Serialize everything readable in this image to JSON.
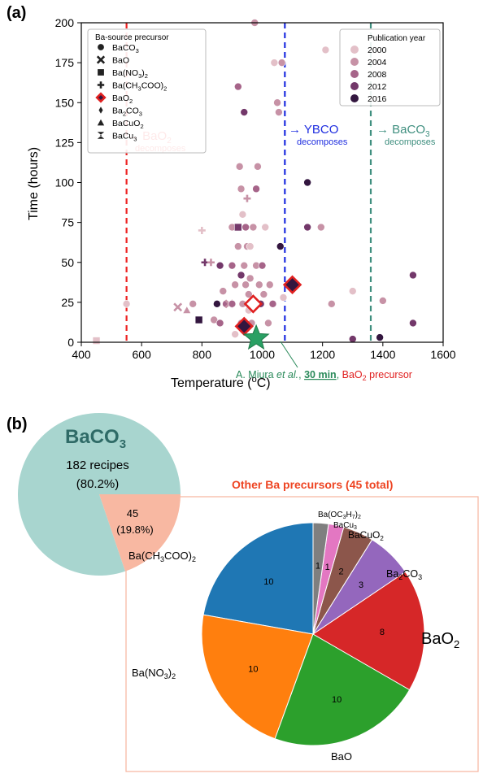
{
  "panel_a": {
    "label": "(a)",
    "xlabel": "Temperature (",
    "xlabel_sup": "o",
    "xlabel_end": "C)",
    "ylabel": "Time (hours)",
    "xlim": [
      400,
      1600
    ],
    "ylim": [
      0,
      200
    ],
    "xticks": [
      "400",
      "600",
      "800",
      "1000",
      "1200",
      "1400",
      "1600"
    ],
    "yticks": [
      "0",
      "25",
      "50",
      "75",
      "100",
      "125",
      "150",
      "175",
      "200"
    ],
    "legend_precursor": {
      "title": "Ba-source precursor",
      "items": [
        {
          "label": "BaCO",
          "sub": "3",
          "marker": "circle"
        },
        {
          "label": "BaO",
          "sub": "",
          "marker": "x"
        },
        {
          "label": "Ba(NO",
          "sub": "3",
          "tail": ")",
          "sub2": "2",
          "marker": "square"
        },
        {
          "label": "Ba(CH",
          "sub": "3",
          "tail": "COO)",
          "sub2": "2",
          "marker": "plus"
        },
        {
          "label": "BaO",
          "sub": "2",
          "marker": "diamond-red"
        },
        {
          "label": "Ba",
          "sub": "2",
          "tail": "CO",
          "sub2": "3",
          "marker": "thin-diamond"
        },
        {
          "label": "BaCuO",
          "sub": "2",
          "marker": "triangle"
        },
        {
          "label": "BaCu",
          "sub": "3",
          "marker": "bowtie"
        }
      ]
    },
    "legend_year": {
      "title": "Publication year",
      "items": [
        {
          "label": "2000",
          "color": "#e3c0c8"
        },
        {
          "label": "2004",
          "color": "#c792a6"
        },
        {
          "label": "2008",
          "color": "#a66489"
        },
        {
          "label": "2012",
          "color": "#73386a"
        },
        {
          "label": "2016",
          "color": "#33163f"
        }
      ]
    },
    "vlines": [
      {
        "x": 550,
        "color": "#ee2222",
        "label": "BaO",
        "label_sub": "2",
        "label2": "decomposes"
      },
      {
        "x": 1075,
        "color": "#1f2ee0",
        "label": "YBCO",
        "label_sub": "",
        "label2": "decomposes"
      },
      {
        "x": 1360,
        "color": "#3f8f7f",
        "label": "BaCO",
        "label_sub": "3",
        "label2": "decomposes"
      }
    ],
    "annotation": {
      "author": "A. Miura ",
      "etal": "et al.",
      "comma": ", ",
      "bold": "30 min",
      "comma2": ", ",
      "precursor": "BaO",
      "precursor_sub": "2",
      "precursor_tail": " precursor",
      "point": [
        980,
        0.5
      ]
    }
  },
  "chart_data": [
    {
      "type": "scatter",
      "xlabel": "Temperature (oC)",
      "ylabel": "Time (hours)",
      "xlim": [
        400,
        1600
      ],
      "ylim": [
        0,
        200
      ],
      "grid": false,
      "points": [
        {
          "x": 450,
          "y": 1,
          "m": "square",
          "c": "#e3c0c8"
        },
        {
          "x": 550,
          "y": 24,
          "m": "circle",
          "c": "#e3c0c8"
        },
        {
          "x": 720,
          "y": 22,
          "m": "x",
          "c": "#c792a6"
        },
        {
          "x": 750,
          "y": 20,
          "m": "triangle",
          "c": "#c792a6"
        },
        {
          "x": 770,
          "y": 24,
          "m": "circle",
          "c": "#c792a6"
        },
        {
          "x": 790,
          "y": 14,
          "m": "square",
          "c": "#33163f"
        },
        {
          "x": 800,
          "y": 70,
          "m": "plus",
          "c": "#e3c0c8"
        },
        {
          "x": 810,
          "y": 50,
          "m": "plus",
          "c": "#73386a"
        },
        {
          "x": 830,
          "y": 50,
          "m": "plus",
          "c": "#c792a6"
        },
        {
          "x": 840,
          "y": 14,
          "m": "circle",
          "c": "#c792a6"
        },
        {
          "x": 850,
          "y": 24,
          "m": "circle",
          "c": "#33163f"
        },
        {
          "x": 860,
          "y": 48,
          "m": "circle",
          "c": "#73386a"
        },
        {
          "x": 860,
          "y": 12,
          "m": "circle",
          "c": "#a66489"
        },
        {
          "x": 870,
          "y": 32,
          "m": "circle",
          "c": "#c792a6"
        },
        {
          "x": 880,
          "y": 24,
          "m": "circle",
          "c": "#a66489"
        },
        {
          "x": 890,
          "y": 24,
          "m": "x",
          "c": "#c792a6"
        },
        {
          "x": 900,
          "y": 24,
          "m": "circle",
          "c": "#a66489"
        },
        {
          "x": 900,
          "y": 48,
          "m": "circle",
          "c": "#a66489"
        },
        {
          "x": 900,
          "y": 72,
          "m": "circle",
          "c": "#c792a6"
        },
        {
          "x": 910,
          "y": 36,
          "m": "circle",
          "c": "#c792a6"
        },
        {
          "x": 910,
          "y": 5,
          "m": "circle",
          "c": "#e3c0c8"
        },
        {
          "x": 920,
          "y": 72,
          "m": "square",
          "c": "#73386a"
        },
        {
          "x": 920,
          "y": 60,
          "m": "circle",
          "c": "#c792a6"
        },
        {
          "x": 920,
          "y": 160,
          "m": "circle",
          "c": "#a66489"
        },
        {
          "x": 925,
          "y": 110,
          "m": "circle",
          "c": "#c792a6"
        },
        {
          "x": 930,
          "y": 12,
          "m": "circle",
          "c": "#c792a6"
        },
        {
          "x": 930,
          "y": 42,
          "m": "circle",
          "c": "#73386a"
        },
        {
          "x": 930,
          "y": 96,
          "m": "circle",
          "c": "#c792a6"
        },
        {
          "x": 935,
          "y": 24,
          "m": "circle",
          "c": "#c792a6"
        },
        {
          "x": 935,
          "y": 80,
          "m": "circle",
          "c": "#e3c0c8"
        },
        {
          "x": 940,
          "y": 48,
          "m": "circle",
          "c": "#c792a6"
        },
        {
          "x": 940,
          "y": 12,
          "m": "circle",
          "c": "#a66489"
        },
        {
          "x": 940,
          "y": 144,
          "m": "circle",
          "c": "#73386a"
        },
        {
          "x": 945,
          "y": 36,
          "m": "circle",
          "c": "#c792a6"
        },
        {
          "x": 945,
          "y": 72,
          "m": "circle",
          "c": "#a66489"
        },
        {
          "x": 950,
          "y": 60,
          "m": "circle",
          "c": "#c792a6"
        },
        {
          "x": 950,
          "y": 90,
          "m": "plus",
          "c": "#c792a6"
        },
        {
          "x": 955,
          "y": 20,
          "m": "circle",
          "c": "#e3c0c8"
        },
        {
          "x": 955,
          "y": 30,
          "m": "circle",
          "c": "#c792a6"
        },
        {
          "x": 960,
          "y": 40,
          "m": "circle",
          "c": "#c792a6"
        },
        {
          "x": 960,
          "y": 60,
          "m": "circle",
          "c": "#e3c0c8"
        },
        {
          "x": 965,
          "y": 12,
          "m": "circle",
          "c": "#c792a6"
        },
        {
          "x": 970,
          "y": 72,
          "m": "circle",
          "c": "#c792a6"
        },
        {
          "x": 975,
          "y": 200,
          "m": "circle",
          "c": "#c792a6"
        },
        {
          "x": 980,
          "y": 96,
          "m": "circle",
          "c": "#a66489"
        },
        {
          "x": 980,
          "y": 48,
          "m": "circle",
          "c": "#c792a6"
        },
        {
          "x": 985,
          "y": 110,
          "m": "circle",
          "c": "#c792a6"
        },
        {
          "x": 990,
          "y": 36,
          "m": "circle",
          "c": "#c792a6"
        },
        {
          "x": 995,
          "y": 24,
          "m": "circle",
          "c": "#73386a"
        },
        {
          "x": 1000,
          "y": 48,
          "m": "circle",
          "c": "#a66489"
        },
        {
          "x": 1005,
          "y": 30,
          "m": "circle",
          "c": "#c792a6"
        },
        {
          "x": 1010,
          "y": 72,
          "m": "circle",
          "c": "#e3c0c8"
        },
        {
          "x": 1020,
          "y": 12,
          "m": "circle",
          "c": "#c792a6"
        },
        {
          "x": 1025,
          "y": 36,
          "m": "circle",
          "c": "#c792a6"
        },
        {
          "x": 1035,
          "y": 24,
          "m": "circle",
          "c": "#a66489"
        },
        {
          "x": 1040,
          "y": 175,
          "m": "circle",
          "c": "#e3c0c8"
        },
        {
          "x": 1050,
          "y": 150,
          "m": "circle",
          "c": "#c792a6"
        },
        {
          "x": 1055,
          "y": 144,
          "m": "circle",
          "c": "#c792a6"
        },
        {
          "x": 1060,
          "y": 60,
          "m": "circle",
          "c": "#33163f"
        },
        {
          "x": 1065,
          "y": 175,
          "m": "circle",
          "c": "#c792a6"
        },
        {
          "x": 1070,
          "y": 28,
          "m": "circle",
          "c": "#e3c0c8"
        },
        {
          "x": 1150,
          "y": 100,
          "m": "circle",
          "c": "#33163f"
        },
        {
          "x": 1150,
          "y": 72,
          "m": "circle",
          "c": "#73386a"
        },
        {
          "x": 1195,
          "y": 72,
          "m": "circle",
          "c": "#c792a6"
        },
        {
          "x": 1210,
          "y": 183,
          "m": "circle",
          "c": "#e3c0c8"
        },
        {
          "x": 1230,
          "y": 24,
          "m": "circle",
          "c": "#c792a6"
        },
        {
          "x": 1300,
          "y": 32,
          "m": "circle",
          "c": "#e3c0c8"
        },
        {
          "x": 1300,
          "y": 2,
          "m": "circle",
          "c": "#73386a"
        },
        {
          "x": 1390,
          "y": 3,
          "m": "circle",
          "c": "#33163f"
        },
        {
          "x": 1400,
          "y": 26,
          "m": "circle",
          "c": "#c792a6"
        },
        {
          "x": 1500,
          "y": 42,
          "m": "circle",
          "c": "#73386a"
        },
        {
          "x": 1500,
          "y": 12,
          "m": "circle",
          "c": "#73386a"
        },
        {
          "x": 940,
          "y": 10,
          "m": "diamond-red",
          "c": "#33163f"
        },
        {
          "x": 970,
          "y": 24,
          "m": "diamond-red",
          "c": "#ffffff"
        },
        {
          "x": 1100,
          "y": 36,
          "m": "diamond-red",
          "c": "#33163f"
        }
      ]
    },
    {
      "type": "pie",
      "title": "BaCO",
      "title_sub": "3",
      "slices": [
        {
          "label": "BaCO3",
          "value": 182,
          "text": "182 recipes",
          "pct": "(80.2%)",
          "color": "#a8d5cf"
        },
        {
          "label": "Other",
          "value": 45,
          "text": "45",
          "pct": "(19.8%)",
          "color": "#f8b8a2"
        }
      ]
    },
    {
      "type": "pie",
      "title": "Other Ba precursors (45 total)",
      "slices": [
        {
          "label": "Ba(CH3COO)2",
          "value": 10,
          "text": "10",
          "color": "#1f77b4"
        },
        {
          "label": "Ba(NO3)2",
          "value": 10,
          "text": "10",
          "color": "#ff7f0e"
        },
        {
          "label": "BaO",
          "value": 10,
          "text": "10",
          "color": "#2ca02c"
        },
        {
          "label": "BaO2",
          "value": 8,
          "text": "8",
          "color": "#d62728"
        },
        {
          "label": "Ba2CO3",
          "value": 3,
          "text": "3",
          "color": "#9467bd"
        },
        {
          "label": "BaCuO2",
          "value": 2,
          "text": "2",
          "color": "#8c564b"
        },
        {
          "label": "BaCu3",
          "value": 1,
          "text": "1",
          "color": "#e377c2"
        },
        {
          "label": "Ba(OC3H7)2",
          "value": 1,
          "text": "1",
          "color": "#7f7f7f"
        }
      ]
    }
  ],
  "panel_b": {
    "label": "(b)",
    "big_title": "BaCO",
    "big_title_sub": "3",
    "big_text": "182 recipes",
    "big_pct": "(80.2%)",
    "small_text": "45",
    "small_pct": "(19.8%)",
    "other_title": "Other Ba precursors (45 total)",
    "labels": {
      "acetate": "Ba(CH",
      "nitrate": "Ba(NO",
      "bao": "BaO",
      "bao2": "BaO",
      "ba2co3": "Ba",
      "bacuo2": "BaCuO",
      "bacu3": "BaCu",
      "propox": "Ba(OC"
    }
  }
}
